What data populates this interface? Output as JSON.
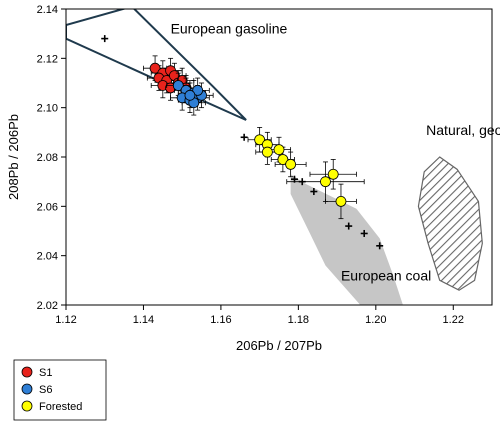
{
  "chart_data": {
    "type": "scatter",
    "xlabel": "206Pb / 207Pb",
    "ylabel": "208Pb / 206Pb",
    "xlim": [
      1.12,
      1.23
    ],
    "ylim": [
      2.02,
      2.14
    ],
    "x_ticks": [
      "1.12",
      "1.14",
      "1.16",
      "1.18",
      "1.20",
      "1.22"
    ],
    "y_ticks": [
      "2.02",
      "2.04",
      "2.06",
      "2.08",
      "2.10",
      "2.12",
      "2.14"
    ],
    "grid": false,
    "colors": {
      "S1": "#e8231c",
      "S6": "#2f7fd6",
      "Forested": "#ffff00",
      "gasoline_outline": "#1f3a4d",
      "coal_fill": "#c6c6c6",
      "geogenic_hatch": "#666666"
    },
    "annotations": [
      {
        "text": "European gasoline",
        "x": 1.147,
        "y": 2.13
      },
      {
        "text": "Natural, geogenic",
        "x": 1.213,
        "y": 2.089
      },
      {
        "text": "European coal",
        "x": 1.191,
        "y": 2.03
      }
    ],
    "regions": [
      {
        "name": "European gasoline",
        "style": "outline",
        "points": [
          [
            1.12,
            2.1335
          ],
          [
            1.12,
            2.128
          ],
          [
            1.148,
            2.108
          ],
          [
            1.1665,
            2.095
          ],
          [
            1.158,
            2.1085
          ],
          [
            1.137,
            2.141
          ]
        ]
      },
      {
        "name": "European coal",
        "style": "filled",
        "points": [
          [
            1.178,
            2.073
          ],
          [
            1.182,
            2.069
          ],
          [
            1.195,
            2.059
          ],
          [
            1.201,
            2.047
          ],
          [
            1.2045,
            2.032
          ],
          [
            1.207,
            2.02
          ],
          [
            1.196,
            2.02
          ],
          [
            1.187,
            2.036
          ],
          [
            1.183,
            2.049
          ],
          [
            1.178,
            2.065
          ]
        ]
      },
      {
        "name": "Natural, geogenic",
        "style": "hatched",
        "points": [
          [
            1.2165,
            2.08
          ],
          [
            1.221,
            2.075
          ],
          [
            1.2265,
            2.062
          ],
          [
            1.2275,
            2.045
          ],
          [
            1.2255,
            2.03
          ],
          [
            1.2215,
            2.026
          ],
          [
            1.2165,
            2.03
          ],
          [
            1.2135,
            2.045
          ],
          [
            1.211,
            2.06
          ],
          [
            1.2125,
            2.074
          ]
        ]
      }
    ],
    "reference_points": [
      [
        1.13,
        2.128
      ],
      [
        1.166,
        2.088
      ],
      [
        1.179,
        2.071
      ],
      [
        1.181,
        2.07
      ],
      [
        1.184,
        2.066
      ],
      [
        1.193,
        2.052
      ],
      [
        1.197,
        2.049
      ],
      [
        1.201,
        2.044
      ]
    ],
    "series": [
      {
        "name": "S1",
        "points": [
          {
            "x": 1.143,
            "y": 2.116,
            "xerr": 0.003,
            "yerr": 0.005
          },
          {
            "x": 1.145,
            "y": 2.114,
            "xerr": 0.003,
            "yerr": 0.005
          },
          {
            "x": 1.147,
            "y": 2.115,
            "xerr": 0.003,
            "yerr": 0.005
          },
          {
            "x": 1.144,
            "y": 2.112,
            "xerr": 0.003,
            "yerr": 0.005
          },
          {
            "x": 1.146,
            "y": 2.111,
            "xerr": 0.003,
            "yerr": 0.005
          },
          {
            "x": 1.148,
            "y": 2.113,
            "xerr": 0.003,
            "yerr": 0.005
          },
          {
            "x": 1.145,
            "y": 2.109,
            "xerr": 0.003,
            "yerr": 0.005
          },
          {
            "x": 1.149,
            "y": 2.11,
            "xerr": 0.003,
            "yerr": 0.005
          },
          {
            "x": 1.147,
            "y": 2.108,
            "xerr": 0.003,
            "yerr": 0.005
          },
          {
            "x": 1.15,
            "y": 2.111,
            "xerr": 0.003,
            "yerr": 0.005
          },
          {
            "x": 1.151,
            "y": 2.108,
            "xerr": 0.003,
            "yerr": 0.005
          }
        ]
      },
      {
        "name": "S6",
        "points": [
          {
            "x": 1.149,
            "y": 2.109,
            "xerr": 0.003,
            "yerr": 0.005
          },
          {
            "x": 1.151,
            "y": 2.107,
            "xerr": 0.003,
            "yerr": 0.005
          },
          {
            "x": 1.153,
            "y": 2.106,
            "xerr": 0.003,
            "yerr": 0.005
          },
          {
            "x": 1.15,
            "y": 2.104,
            "xerr": 0.003,
            "yerr": 0.005
          },
          {
            "x": 1.152,
            "y": 2.103,
            "xerr": 0.003,
            "yerr": 0.005
          },
          {
            "x": 1.154,
            "y": 2.104,
            "xerr": 0.003,
            "yerr": 0.005
          },
          {
            "x": 1.153,
            "y": 2.102,
            "xerr": 0.003,
            "yerr": 0.005
          },
          {
            "x": 1.155,
            "y": 2.105,
            "xerr": 0.003,
            "yerr": 0.005
          },
          {
            "x": 1.154,
            "y": 2.107,
            "xerr": 0.003,
            "yerr": 0.005
          },
          {
            "x": 1.152,
            "y": 2.105,
            "xerr": 0.003,
            "yerr": 0.005
          }
        ]
      },
      {
        "name": "Forested",
        "points": [
          {
            "x": 1.17,
            "y": 2.087,
            "xerr": 0.003,
            "yerr": 0.005
          },
          {
            "x": 1.172,
            "y": 2.085,
            "xerr": 0.003,
            "yerr": 0.005
          },
          {
            "x": 1.175,
            "y": 2.083,
            "xerr": 0.003,
            "yerr": 0.005
          },
          {
            "x": 1.172,
            "y": 2.082,
            "xerr": 0.003,
            "yerr": 0.005
          },
          {
            "x": 1.176,
            "y": 2.079,
            "xerr": 0.003,
            "yerr": 0.005
          },
          {
            "x": 1.178,
            "y": 2.077,
            "xerr": 0.004,
            "yerr": 0.005
          },
          {
            "x": 1.187,
            "y": 2.07,
            "xerr": 0.01,
            "yerr": 0.008
          },
          {
            "x": 1.189,
            "y": 2.073,
            "xerr": 0.006,
            "yerr": 0.006
          },
          {
            "x": 1.191,
            "y": 2.062,
            "xerr": 0.004,
            "yerr": 0.007
          }
        ]
      }
    ],
    "legend": {
      "placement": "bottom-left",
      "entries": [
        "S1",
        "S6",
        "Forested"
      ]
    }
  }
}
